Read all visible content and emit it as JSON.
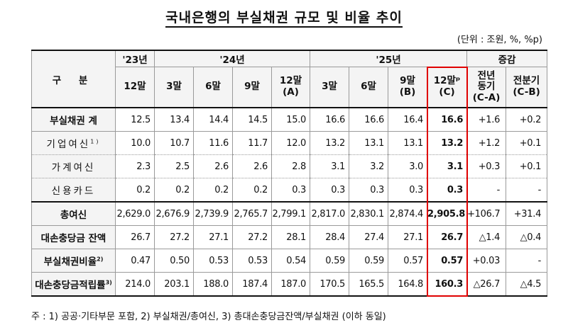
{
  "title": "국내은행의 부실채권 규모 및 비율 추이",
  "unit": "(단위 : 조원, %, %p)",
  "header": {
    "gubun": "구 분",
    "years": [
      "'23년",
      "'24년",
      "'25년",
      "증감"
    ],
    "periods": [
      "12말",
      "3말",
      "6말",
      "9말",
      "12말\n(A)",
      "3말",
      "6말",
      "9말\n(B)",
      "12말ᵖ\n(C)",
      "전년\n동기\n(C-A)",
      "전분기\n(C-B)"
    ]
  },
  "rows": [
    {
      "label": "부실채권 계",
      "sup": "",
      "values": [
        "12.5",
        "13.4",
        "14.4",
        "14.5",
        "15.0",
        "16.6",
        "16.6",
        "16.4",
        "16.6",
        "+1.6",
        "+0.2"
      ]
    },
    {
      "label": "기업여신",
      "sup": "1)",
      "values": [
        "10.0",
        "10.7",
        "11.6",
        "11.7",
        "12.0",
        "13.2",
        "13.1",
        "13.1",
        "13.2",
        "+1.2",
        "+0.1"
      ]
    },
    {
      "label": "가계여신",
      "sup": "",
      "values": [
        "2.3",
        "2.5",
        "2.6",
        "2.6",
        "2.8",
        "3.1",
        "3.2",
        "3.0",
        "3.1",
        "+0.3",
        "+0.1"
      ]
    },
    {
      "label": "신용카드",
      "sup": "",
      "values": [
        "0.2",
        "0.2",
        "0.2",
        "0.2",
        "0.3",
        "0.3",
        "0.3",
        "0.3",
        "0.3",
        "-",
        "-"
      ]
    },
    {
      "label": "총여신",
      "sup": "",
      "values": [
        "2,629.0",
        "2,676.9",
        "2,739.9",
        "2,765.7",
        "2,799.1",
        "2,817.0",
        "2,830.1",
        "2,874.4",
        "2,905.8",
        "+106.7",
        "+31.4"
      ]
    },
    {
      "label": "대손충당금 잔액",
      "sup": "",
      "values": [
        "26.7",
        "27.2",
        "27.1",
        "27.2",
        "28.1",
        "28.4",
        "27.4",
        "27.1",
        "26.7",
        "△1.4",
        "△0.4"
      ]
    },
    {
      "label": "부실채권비율",
      "sup": "2)",
      "values": [
        "0.47",
        "0.50",
        "0.53",
        "0.53",
        "0.54",
        "0.59",
        "0.59",
        "0.57",
        "0.57",
        "+0.03",
        "-"
      ]
    },
    {
      "label": "대손충당금적립률",
      "sup": "3)",
      "values": [
        "214.0",
        "203.1",
        "188.0",
        "187.4",
        "187.0",
        "170.5",
        "165.5",
        "164.8",
        "160.3",
        "△26.7",
        "△4.5"
      ]
    }
  ],
  "note": "주 : 1) 공공·기타부문 포함,   2) 부실채권/총여신,   3) 총대손충당금잔액/부실채권 (이하 동일)"
}
